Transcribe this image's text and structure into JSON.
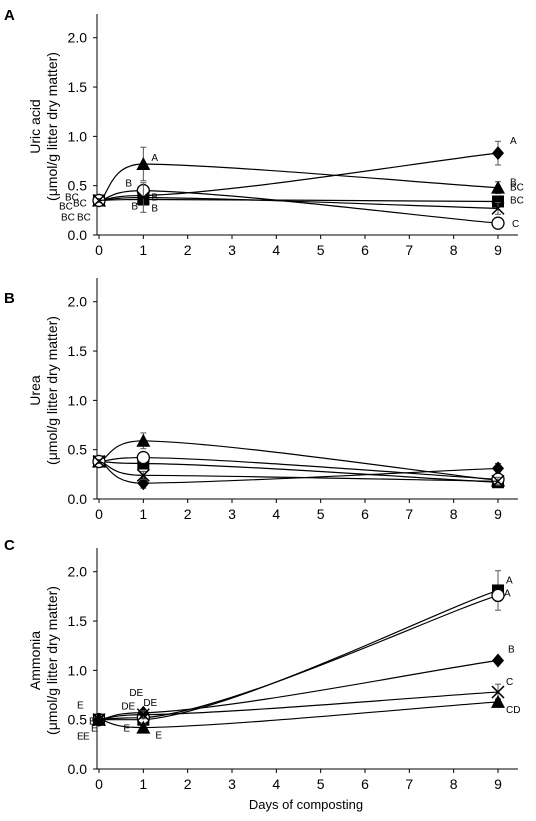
{
  "figure": {
    "xlabel": "Days of composting"
  },
  "chart_data": [
    {
      "type": "line",
      "panel": "A",
      "ylabel_line1": "Uric acid",
      "ylabel_line2": "(μmol/g litter dry matter)",
      "xlabel": "",
      "x_ticks": [
        0,
        1,
        2,
        3,
        4,
        5,
        6,
        7,
        8,
        9
      ],
      "y_ticks": [
        "0.0",
        "0.5",
        "1.0",
        "1.5",
        "2.0"
      ],
      "xlim": [
        0,
        9.5
      ],
      "ylim": [
        0,
        2.2
      ],
      "x": [
        0,
        1,
        9
      ],
      "series": [
        {
          "marker": "diamond",
          "values": [
            0.35,
            0.4,
            0.83
          ],
          "errors": [
            0.02,
            0.04,
            0.12
          ],
          "labels": [
            "BC",
            "B",
            "A"
          ]
        },
        {
          "marker": "triangle",
          "values": [
            0.35,
            0.72,
            0.48
          ],
          "errors": [
            0.02,
            0.17,
            0.06
          ],
          "labels": [
            "BC",
            "A",
            "B"
          ]
        },
        {
          "marker": "square",
          "values": [
            0.35,
            0.36,
            0.34
          ],
          "errors": [
            0.02,
            0.05,
            0.05
          ],
          "labels": [
            "BC",
            "B",
            "BC"
          ]
        },
        {
          "marker": "circle",
          "values": [
            0.35,
            0.45,
            0.12
          ],
          "errors": [
            0.02,
            0.06,
            0.02
          ],
          "labels": [
            "BC",
            "B",
            "C"
          ]
        },
        {
          "marker": "x",
          "values": [
            0.35,
            0.38,
            0.27
          ],
          "errors": [
            0.02,
            0.15,
            0.06
          ],
          "labels": [
            "BC",
            "B",
            "BC"
          ]
        }
      ]
    },
    {
      "type": "line",
      "panel": "B",
      "ylabel_line1": "Urea",
      "ylabel_line2": "(μmol/g litter dry matter)",
      "xlabel": "",
      "x_ticks": [
        0,
        1,
        2,
        3,
        4,
        5,
        6,
        7,
        8,
        9
      ],
      "y_ticks": [
        "0.0",
        "0.5",
        "1.0",
        "1.5",
        "2.0"
      ],
      "xlim": [
        0,
        9.5
      ],
      "ylim": [
        0,
        2.2
      ],
      "x": [
        0,
        1,
        9
      ],
      "series": [
        {
          "marker": "diamond",
          "values": [
            0.38,
            0.16,
            0.31
          ],
          "errors": [
            0.02,
            0.05,
            0.05
          ],
          "labels": [
            "",
            "",
            ""
          ]
        },
        {
          "marker": "triangle",
          "values": [
            0.38,
            0.59,
            0.19
          ],
          "errors": [
            0.02,
            0.08,
            0.04
          ],
          "labels": [
            "",
            "",
            ""
          ]
        },
        {
          "marker": "square",
          "values": [
            0.38,
            0.36,
            0.17
          ],
          "errors": [
            0.02,
            0.04,
            0.04
          ],
          "labels": [
            "",
            "",
            ""
          ]
        },
        {
          "marker": "circle",
          "values": [
            0.38,
            0.42,
            0.2
          ],
          "errors": [
            0.02,
            0.04,
            0.03
          ],
          "labels": [
            "",
            "",
            ""
          ]
        },
        {
          "marker": "x",
          "values": [
            0.38,
            0.24,
            0.18
          ],
          "errors": [
            0.02,
            0.04,
            0.04
          ],
          "labels": [
            "",
            "",
            ""
          ]
        }
      ]
    },
    {
      "type": "line",
      "panel": "C",
      "ylabel_line1": "Ammonia",
      "ylabel_line2": "(μmol/g litter dry matter)",
      "xlabel": "Days of composting",
      "x_ticks": [
        0,
        1,
        2,
        3,
        4,
        5,
        6,
        7,
        8,
        9
      ],
      "y_ticks": [
        "0.0",
        "0.5",
        "1.0",
        "1.5",
        "2.0"
      ],
      "xlim": [
        0,
        9.5
      ],
      "ylim": [
        0,
        2.2
      ],
      "x": [
        0,
        1,
        9
      ],
      "series": [
        {
          "marker": "square",
          "values": [
            0.5,
            0.5,
            1.81
          ],
          "errors": [
            0.02,
            0.05,
            0.2
          ],
          "labels": [
            "E",
            "E",
            "A"
          ]
        },
        {
          "marker": "circle",
          "values": [
            0.5,
            0.52,
            1.76
          ],
          "errors": [
            0.02,
            0.04,
            0.06
          ],
          "labels": [
            "E",
            "DE",
            "A"
          ]
        },
        {
          "marker": "diamond",
          "values": [
            0.5,
            0.57,
            1.1
          ],
          "errors": [
            0.02,
            0.03,
            0.03
          ],
          "labels": [
            "E",
            "DE",
            "B"
          ]
        },
        {
          "marker": "x",
          "values": [
            0.5,
            0.55,
            0.78
          ],
          "errors": [
            0.02,
            0.04,
            0.08
          ],
          "labels": [
            "E",
            "DE",
            "C"
          ]
        },
        {
          "marker": "triangle",
          "values": [
            0.5,
            0.42,
            0.68
          ],
          "errors": [
            0.02,
            0.04,
            0.03
          ],
          "labels": [
            "E",
            "E",
            "CD"
          ]
        }
      ]
    }
  ]
}
